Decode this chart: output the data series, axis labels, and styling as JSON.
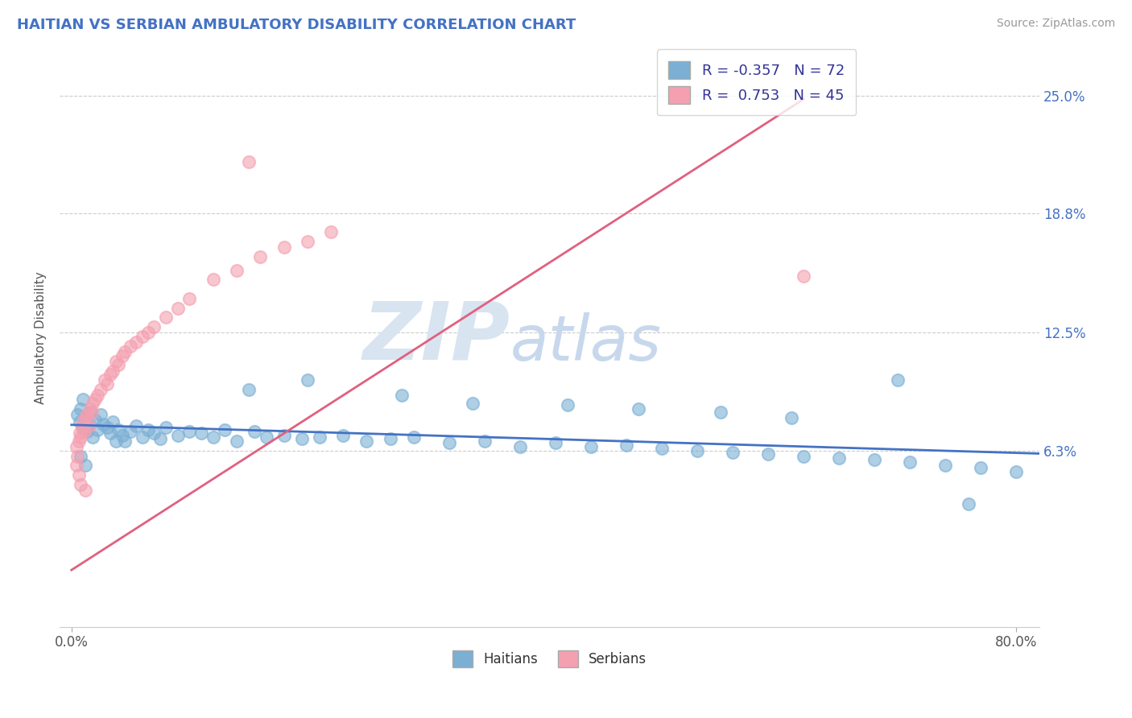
{
  "title": "HAITIAN VS SERBIAN AMBULATORY DISABILITY CORRELATION CHART",
  "source": "Source: ZipAtlas.com",
  "ylabel": "Ambulatory Disability",
  "xlim": [
    -0.01,
    0.82
  ],
  "ylim": [
    -0.03,
    0.275
  ],
  "y_tick_vals": [
    0.063,
    0.125,
    0.188,
    0.25
  ],
  "y_tick_labels": [
    "6.3%",
    "12.5%",
    "18.8%",
    "25.0%"
  ],
  "haitian_color": "#7BAFD4",
  "serbian_color": "#F4A0B0",
  "haitian_line_color": "#4472C4",
  "serbian_line_color": "#E06080",
  "R_haitian": -0.357,
  "N_haitian": 72,
  "R_serbian": 0.753,
  "N_serbian": 45,
  "watermark_zip": "ZIP",
  "watermark_atlas": "atlas",
  "haitian_x": [
    0.005,
    0.007,
    0.008,
    0.01,
    0.01,
    0.012,
    0.013,
    0.015,
    0.016,
    0.018,
    0.02,
    0.022,
    0.025,
    0.027,
    0.03,
    0.033,
    0.035,
    0.038,
    0.04,
    0.043,
    0.045,
    0.05,
    0.055,
    0.06,
    0.065,
    0.07,
    0.075,
    0.08,
    0.09,
    0.1,
    0.11,
    0.12,
    0.13,
    0.14,
    0.155,
    0.165,
    0.18,
    0.195,
    0.21,
    0.23,
    0.25,
    0.27,
    0.29,
    0.32,
    0.35,
    0.38,
    0.41,
    0.44,
    0.47,
    0.5,
    0.53,
    0.56,
    0.59,
    0.62,
    0.65,
    0.68,
    0.71,
    0.74,
    0.77,
    0.8,
    0.15,
    0.2,
    0.28,
    0.34,
    0.42,
    0.48,
    0.55,
    0.61,
    0.7,
    0.76,
    0.008,
    0.012
  ],
  "haitian_y": [
    0.082,
    0.078,
    0.085,
    0.075,
    0.09,
    0.08,
    0.073,
    0.077,
    0.083,
    0.07,
    0.079,
    0.074,
    0.082,
    0.077,
    0.075,
    0.072,
    0.078,
    0.068,
    0.074,
    0.071,
    0.068,
    0.073,
    0.076,
    0.07,
    0.074,
    0.072,
    0.069,
    0.075,
    0.071,
    0.073,
    0.072,
    0.07,
    0.074,
    0.068,
    0.073,
    0.07,
    0.071,
    0.069,
    0.07,
    0.071,
    0.068,
    0.069,
    0.07,
    0.067,
    0.068,
    0.065,
    0.067,
    0.065,
    0.066,
    0.064,
    0.063,
    0.062,
    0.061,
    0.06,
    0.059,
    0.058,
    0.057,
    0.055,
    0.054,
    0.052,
    0.095,
    0.1,
    0.092,
    0.088,
    0.087,
    0.085,
    0.083,
    0.08,
    0.1,
    0.035,
    0.06,
    0.055
  ],
  "serbian_x": [
    0.004,
    0.005,
    0.006,
    0.007,
    0.008,
    0.009,
    0.01,
    0.011,
    0.012,
    0.013,
    0.015,
    0.016,
    0.017,
    0.018,
    0.02,
    0.022,
    0.025,
    0.028,
    0.03,
    0.033,
    0.035,
    0.038,
    0.04,
    0.043,
    0.045,
    0.05,
    0.055,
    0.06,
    0.065,
    0.07,
    0.08,
    0.09,
    0.1,
    0.12,
    0.14,
    0.16,
    0.18,
    0.2,
    0.22,
    0.004,
    0.006,
    0.008,
    0.012,
    0.62,
    0.15
  ],
  "serbian_y": [
    0.065,
    0.06,
    0.068,
    0.072,
    0.07,
    0.075,
    0.078,
    0.073,
    0.08,
    0.082,
    0.076,
    0.085,
    0.083,
    0.088,
    0.09,
    0.092,
    0.095,
    0.1,
    0.098,
    0.103,
    0.105,
    0.11,
    0.108,
    0.113,
    0.115,
    0.118,
    0.12,
    0.123,
    0.125,
    0.128,
    0.133,
    0.138,
    0.143,
    0.153,
    0.158,
    0.165,
    0.17,
    0.173,
    0.178,
    0.055,
    0.05,
    0.045,
    0.042,
    0.155,
    0.215
  ]
}
